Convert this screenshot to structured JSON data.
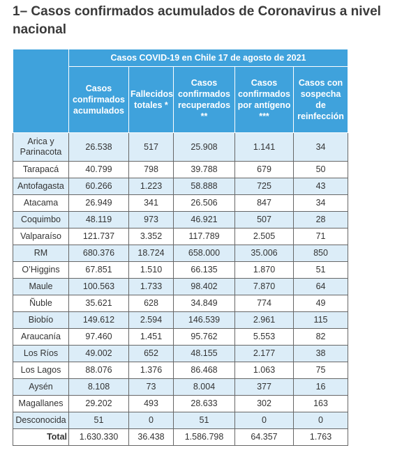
{
  "header": {
    "title": "1– Casos confirmados acumulados de Coronavirus a nivel nacional"
  },
  "table": {
    "caption": "Casos COVID-19 en Chile 17 de agosto de 2021",
    "columns": [
      "Casos confirmados acumulados",
      "Fallecidos totales *",
      "Casos confirmados recuperados **",
      "Casos confirmados por antígeno ***",
      "Casos con sospecha de reinfección"
    ],
    "rows": [
      [
        "Arica y Parinacota",
        "26.538",
        "517",
        "25.908",
        "1.141",
        "34"
      ],
      [
        "Tarapacá",
        "40.799",
        "798",
        "39.788",
        "679",
        "50"
      ],
      [
        "Antofagasta",
        "60.266",
        "1.223",
        "58.888",
        "725",
        "43"
      ],
      [
        "Atacama",
        "26.949",
        "341",
        "26.506",
        "847",
        "34"
      ],
      [
        "Coquimbo",
        "48.119",
        "973",
        "46.921",
        "507",
        "28"
      ],
      [
        "Valparaíso",
        "121.737",
        "3.352",
        "117.789",
        "2.505",
        "71"
      ],
      [
        "RM",
        "680.376",
        "18.724",
        "658.000",
        "35.006",
        "850"
      ],
      [
        "O’Higgins",
        "67.851",
        "1.510",
        "66.135",
        "1.870",
        "51"
      ],
      [
        "Maule",
        "100.563",
        "1.733",
        "98.402",
        "7.870",
        "64"
      ],
      [
        "Ñuble",
        "35.621",
        "628",
        "34.849",
        "774",
        "49"
      ],
      [
        "Biobío",
        "149.612",
        "2.594",
        "146.539",
        "2.961",
        "115"
      ],
      [
        "Araucanía",
        "97.460",
        "1.451",
        "95.762",
        "5.553",
        "82"
      ],
      [
        "Los Ríos",
        "49.002",
        "652",
        "48.155",
        "2.177",
        "38"
      ],
      [
        "Los Lagos",
        "88.076",
        "1.376",
        "86.468",
        "1.063",
        "75"
      ],
      [
        "Aysén",
        "8.108",
        "73",
        "8.004",
        "377",
        "16"
      ],
      [
        "Magallanes",
        "29.202",
        "493",
        "28.633",
        "302",
        "163"
      ],
      [
        "Desconocida",
        "51",
        "0",
        "51",
        "0",
        "0"
      ]
    ],
    "total": [
      "Total",
      "1.630.330",
      "36.438",
      "1.586.798",
      "64.357",
      "1.763"
    ]
  }
}
